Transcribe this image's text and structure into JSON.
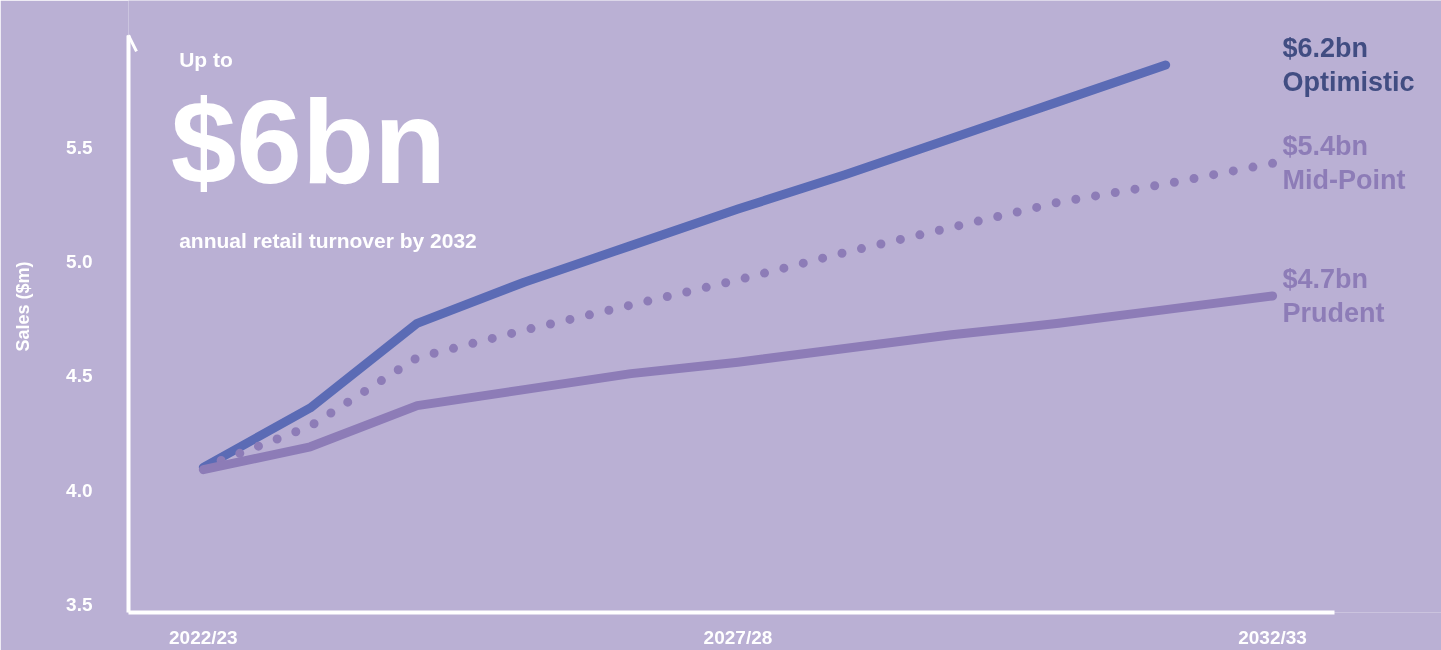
{
  "chart_data": {
    "type": "line",
    "title": "$6bn",
    "ylabel": "Sales ($m)",
    "annotations": [
      "Up to",
      "annual retail turnover by 2032",
      "$6.2bn",
      "$5.4bn",
      "$4.7bn"
    ],
    "categories": [
      "2022/23",
      null,
      null,
      null,
      null,
      "2027/28",
      null,
      null,
      null,
      null,
      "2032/33"
    ],
    "series": [
      {
        "name": "Optimistic",
        "color": "#5b6bb5",
        "values": [
          4.1,
          4.36,
          4.73,
          4.91,
          5.07,
          5.23,
          5.38,
          5.54,
          5.7,
          5.86,
          null
        ],
        "line_style": "solid"
      },
      {
        "name": "Mid-Point",
        "color": "#8d7cb7",
        "values": [
          4.1,
          4.28,
          4.58,
          4.7,
          4.81,
          4.92,
          5.04,
          5.15,
          5.26,
          5.34,
          5.43
        ],
        "line_style": "dotted"
      },
      {
        "name": "Prudent",
        "color": "#8d7cb7",
        "values": [
          4.09,
          4.19,
          4.37,
          4.44,
          4.51,
          4.56,
          4.62,
          4.68,
          4.73,
          4.79,
          4.85
        ],
        "line_style": "solid"
      }
    ],
    "ylim": [
      3.465,
      5.99
    ],
    "yticks": [
      {
        "value": 3.5,
        "label": "3.5"
      },
      {
        "value": 4.0,
        "label": "4.0"
      },
      {
        "value": 4.5,
        "label": "4.5"
      },
      {
        "value": 5.0,
        "label": "5.0"
      },
      {
        "value": 5.5,
        "label": "5.5"
      }
    ],
    "grid": false,
    "legend": false,
    "marker": "none"
  }
}
